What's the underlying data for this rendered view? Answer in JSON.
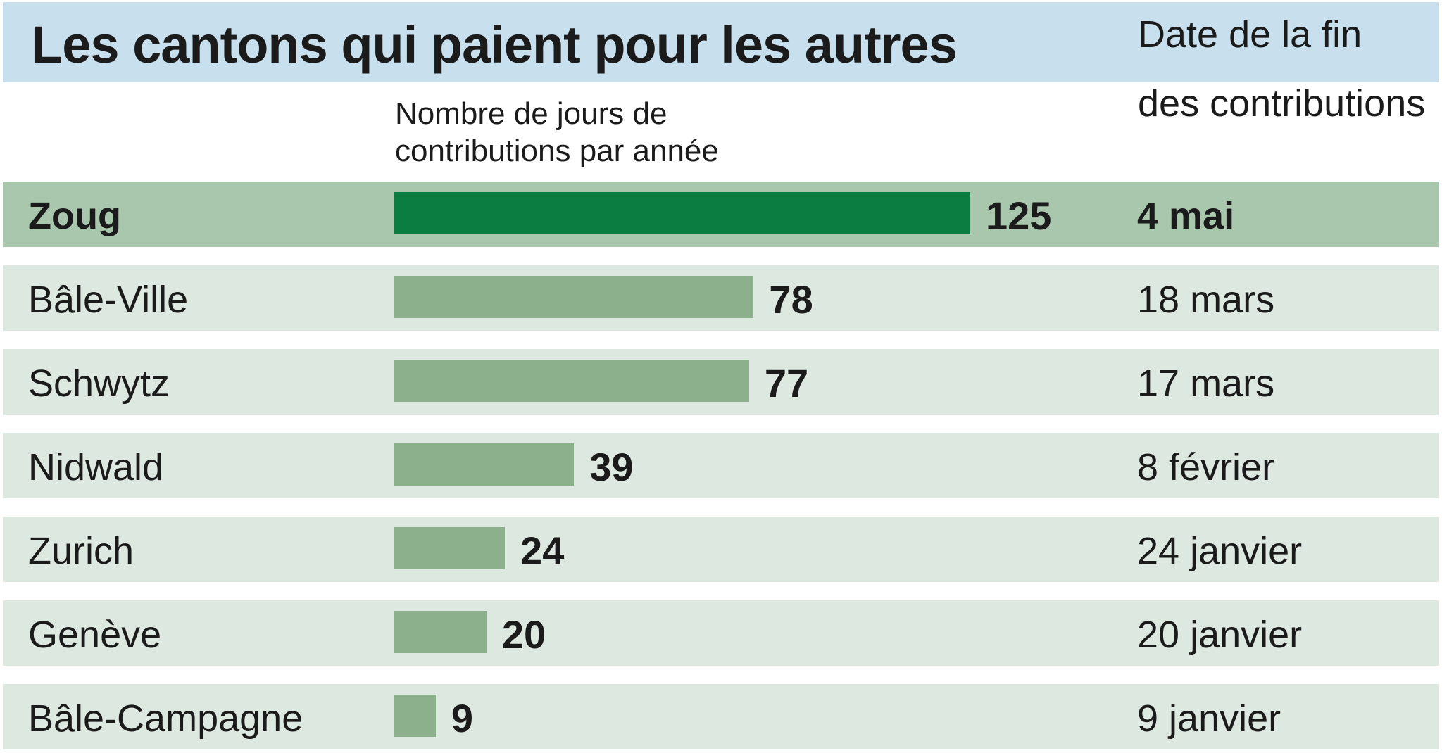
{
  "title": "Les cantons qui paient pour les autres",
  "columns": {
    "days_line1": "Nombre de jours de",
    "days_line2": "contributions par année",
    "date_line1": "Date de la fin",
    "date_line2": "des contributions"
  },
  "colors": {
    "title_band": "#c8e0ee",
    "row_background": "#dde8e0",
    "highlight_row_background": "#a9c7ad",
    "bar": "#8bb08b",
    "highlight_bar": "#0b7d41"
  },
  "chart_data": {
    "type": "bar",
    "orientation": "horizontal",
    "title": "Les cantons qui paient pour les autres",
    "categories": [
      "Zoug",
      "Bâle-Ville",
      "Schwytz",
      "Nidwald",
      "Zurich",
      "Genève",
      "Bâle-Campagne"
    ],
    "values": [
      125,
      78,
      77,
      39,
      24,
      20,
      9
    ],
    "value_labels": [
      "125",
      "78",
      "77",
      "39",
      "24",
      "20",
      "9"
    ],
    "end_dates": [
      "4 mai",
      "18 mars",
      "17 mars",
      "8 février",
      "24 janvier",
      "20 janvier",
      "9 janvier"
    ],
    "highlighted": [
      "Zoug"
    ],
    "xlim": [
      0,
      125
    ],
    "grid": false,
    "legend": "none"
  }
}
